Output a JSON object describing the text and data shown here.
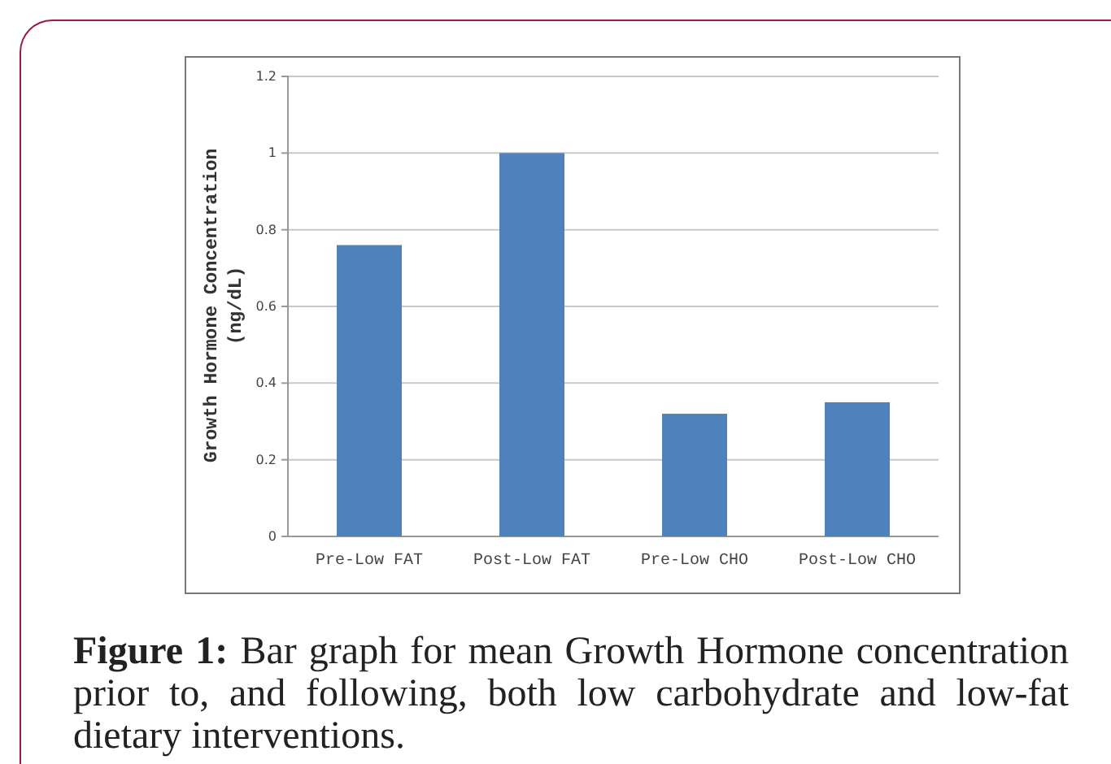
{
  "chart_data": {
    "type": "bar",
    "ylabel": "Growth Hormone Concentration\n(ng/dL)",
    "categories": [
      "Pre-Low FAT",
      "Post-Low FAT",
      "Pre-Low CHO",
      "Post-Low CHO"
    ],
    "values": [
      0.76,
      1.0,
      0.32,
      0.35
    ],
    "color": "#4f81bd",
    "ylim": [
      0,
      1.2
    ],
    "yticks": [
      0,
      0.2,
      0.4,
      0.6,
      0.8,
      1,
      1.2
    ],
    "grid": "y",
    "annotations": [
      "Figure 1: Bar graph for mean Growth Hormone concentration prior to, and following, both low carbohydrate and low-fat dietary interventions."
    ]
  }
}
